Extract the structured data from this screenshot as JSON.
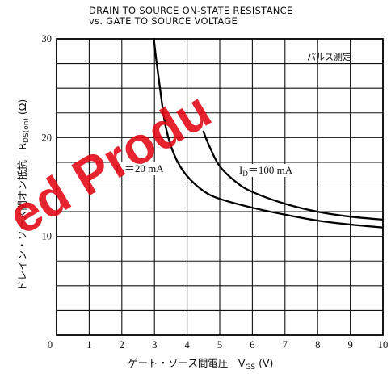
{
  "chart_data": {
    "type": "line",
    "title": [
      "DRAIN TO SOURCE ON-STATE RESISTANCE",
      "vs. GATE TO SOURCE VOLTAGE"
    ],
    "xlabel": {
      "main": "ゲート・ソース間電圧　V",
      "sub": "GS",
      "unit": " (V)"
    },
    "ylabel": {
      "main": "ドレイン・ソース間オン抵抗　R",
      "sub": "DS(on)",
      "unit": " (Ω)"
    },
    "xlim": [
      0,
      10
    ],
    "ylim": [
      0,
      30
    ],
    "x_ticks": [
      "0",
      "1",
      "2",
      "3",
      "4",
      "5",
      "6",
      "7",
      "8",
      "9",
      "10"
    ],
    "y_ticks": [
      {
        "value": 10,
        "label": "10"
      },
      {
        "value": 20,
        "label": "20"
      },
      {
        "value": 30,
        "label": "30"
      }
    ],
    "grid": true,
    "x_minor_per_major": 1,
    "y_minor_per_major": 4,
    "annotation": "パルス測定",
    "series": [
      {
        "name": "I_D = 20 mA",
        "label_main": "I",
        "label_sub": "D",
        "label_rest": "＝20  mA",
        "x": [
          2.98,
          3.05,
          3.15,
          3.25,
          3.35,
          3.5,
          3.7,
          4.0,
          4.5,
          5.0,
          6.0,
          7.0,
          8.0,
          9.0,
          10.0
        ],
        "y": [
          30.0,
          28.0,
          25.5,
          23.0,
          21.0,
          19.2,
          17.6,
          16.1,
          14.6,
          13.8,
          12.9,
          12.2,
          11.6,
          11.2,
          10.9
        ]
      },
      {
        "name": "I_D = 100 mA",
        "label_main": "I",
        "label_sub": "D",
        "label_rest": "＝100  mA",
        "x": [
          4.5,
          4.7,
          5.0,
          5.5,
          6.0,
          7.0,
          8.0,
          9.0,
          10.0
        ],
        "y": [
          20.6,
          19.0,
          17.1,
          15.5,
          14.5,
          13.3,
          12.5,
          12.0,
          11.7
        ]
      }
    ],
    "watermark": "ed Produ"
  }
}
